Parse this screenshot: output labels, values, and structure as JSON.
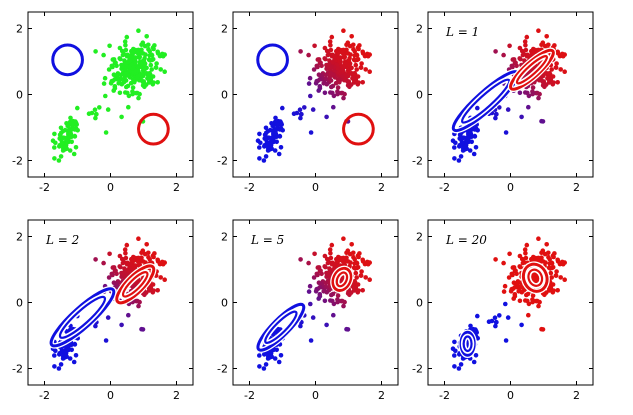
{
  "chart_data": {
    "type": "scatter",
    "layout": "2x3",
    "xlim": [
      -2.5,
      2.5
    ],
    "ylim": [
      -2.5,
      2.5
    ],
    "xticks": [
      "-2",
      "0",
      "2"
    ],
    "yticks": [
      "2",
      "0",
      "-2"
    ],
    "xtick_values": [
      -2,
      0,
      2
    ],
    "ytick_values": [
      2,
      0,
      -2
    ],
    "colors": {
      "blue": "#1010e0",
      "red": "#e01010",
      "green": "#22ee22",
      "white": "#ffffff"
    },
    "clusters": [
      {
        "cx": -1.35,
        "cy": -1.35,
        "sx": 0.18,
        "sy": 0.38,
        "n": 70
      },
      {
        "cx": 0.75,
        "cy": 0.75,
        "sx": 0.35,
        "sy": 0.38,
        "n": 230
      },
      {
        "cx": -0.15,
        "cy": -0.35,
        "sx": 0.55,
        "sy": 0.55,
        "n": 20
      }
    ],
    "panels": [
      {
        "title": "",
        "point_color_mode": "green",
        "ellipses": [
          {
            "color": "blue",
            "cx": -1.3,
            "cy": 1.05,
            "rx": 0.45,
            "ry": 0.45,
            "angle": 0
          },
          {
            "color": "red",
            "cx": 1.3,
            "cy": -1.05,
            "rx": 0.45,
            "ry": 0.45,
            "angle": 0
          }
        ]
      },
      {
        "title": "",
        "point_color_mode": "responsibility",
        "ellipses": [
          {
            "color": "blue",
            "cx": -1.3,
            "cy": 1.05,
            "rx": 0.45,
            "ry": 0.45,
            "angle": 0
          },
          {
            "color": "red",
            "cx": 1.3,
            "cy": -1.05,
            "rx": 0.45,
            "ry": 0.45,
            "angle": 0
          }
        ]
      },
      {
        "title": "L = 1",
        "point_color_mode": "responsibility",
        "ellipses": [
          {
            "color": "blue",
            "cx": -0.75,
            "cy": -0.2,
            "rx": 1.3,
            "ry": 0.28,
            "angle": 42
          },
          {
            "color": "blue",
            "cx": -0.75,
            "cy": -0.2,
            "rx": 0.95,
            "ry": 0.18,
            "angle": 42,
            "inner": true
          },
          {
            "color": "red",
            "cx": 0.65,
            "cy": 0.75,
            "rx": 0.85,
            "ry": 0.22,
            "angle": 42
          },
          {
            "color": "red",
            "cx": 0.65,
            "cy": 0.75,
            "rx": 0.6,
            "ry": 0.13,
            "angle": 42,
            "inner": true
          }
        ]
      },
      {
        "title": "L = 2",
        "point_color_mode": "responsibility",
        "ellipses": [
          {
            "color": "blue",
            "cx": -0.85,
            "cy": -0.45,
            "rx": 1.25,
            "ry": 0.3,
            "angle": 42
          },
          {
            "color": "blue",
            "cx": -0.85,
            "cy": -0.45,
            "rx": 0.9,
            "ry": 0.2,
            "angle": 42,
            "inner": true
          },
          {
            "color": "red",
            "cx": 0.75,
            "cy": 0.55,
            "rx": 0.75,
            "ry": 0.25,
            "angle": 45
          },
          {
            "color": "red",
            "cx": 0.75,
            "cy": 0.55,
            "rx": 0.5,
            "ry": 0.15,
            "angle": 45,
            "inner": true
          }
        ]
      },
      {
        "title": "L = 5",
        "point_color_mode": "responsibility",
        "ellipses": [
          {
            "color": "blue",
            "cx": -1.05,
            "cy": -0.75,
            "rx": 0.95,
            "ry": 0.25,
            "angle": 45
          },
          {
            "color": "blue",
            "cx": -1.05,
            "cy": -0.75,
            "rx": 0.65,
            "ry": 0.16,
            "angle": 45,
            "inner": true
          },
          {
            "color": "red",
            "cx": 0.8,
            "cy": 0.7,
            "rx": 0.35,
            "ry": 0.25,
            "angle": 65
          },
          {
            "color": "red",
            "cx": 0.8,
            "cy": 0.7,
            "rx": 0.22,
            "ry": 0.14,
            "angle": 65,
            "inner": true
          }
        ]
      },
      {
        "title": "L = 20",
        "point_color_mode": "hard",
        "ellipses": [
          {
            "color": "blue",
            "cx": -1.3,
            "cy": -1.25,
            "rx": 0.2,
            "ry": 0.35,
            "angle": 0
          },
          {
            "color": "blue",
            "cx": -1.3,
            "cy": -1.25,
            "rx": 0.12,
            "ry": 0.22,
            "angle": 0,
            "inner": true
          },
          {
            "color": "red",
            "cx": 0.75,
            "cy": 0.75,
            "rx": 0.35,
            "ry": 0.42,
            "angle": 20
          },
          {
            "color": "red",
            "cx": 0.75,
            "cy": 0.75,
            "rx": 0.2,
            "ry": 0.25,
            "angle": 20,
            "inner": true
          }
        ]
      }
    ]
  }
}
